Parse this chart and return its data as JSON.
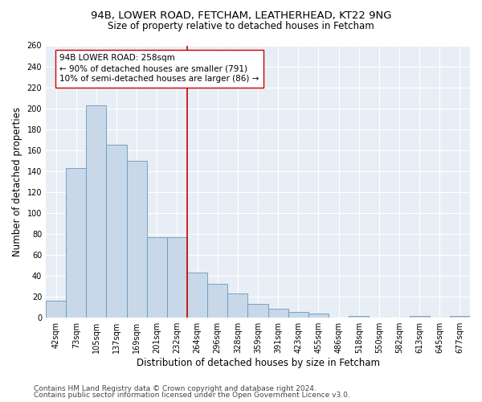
{
  "title_line1": "94B, LOWER ROAD, FETCHAM, LEATHERHEAD, KT22 9NG",
  "title_line2": "Size of property relative to detached houses in Fetcham",
  "xlabel": "Distribution of detached houses by size in Fetcham",
  "ylabel": "Number of detached properties",
  "bar_color": "#c8d8e8",
  "bar_edge_color": "#6699bb",
  "categories": [
    "42sqm",
    "73sqm",
    "105sqm",
    "137sqm",
    "169sqm",
    "201sqm",
    "232sqm",
    "264sqm",
    "296sqm",
    "328sqm",
    "359sqm",
    "391sqm",
    "423sqm",
    "455sqm",
    "486sqm",
    "518sqm",
    "550sqm",
    "582sqm",
    "613sqm",
    "645sqm",
    "677sqm"
  ],
  "values": [
    16,
    143,
    203,
    165,
    150,
    77,
    77,
    43,
    32,
    23,
    13,
    8,
    5,
    4,
    0,
    1,
    0,
    0,
    1,
    0,
    1
  ],
  "vline_color": "#cc0000",
  "vline_pos": 6.5,
  "annotation_text": "94B LOWER ROAD: 258sqm\n← 90% of detached houses are smaller (791)\n10% of semi-detached houses are larger (86) →",
  "ylim": [
    0,
    260
  ],
  "yticks": [
    0,
    20,
    40,
    60,
    80,
    100,
    120,
    140,
    160,
    180,
    200,
    220,
    240,
    260
  ],
  "footer_line1": "Contains HM Land Registry data © Crown copyright and database right 2024.",
  "footer_line2": "Contains public sector information licensed under the Open Government Licence v3.0.",
  "plot_background_color": "#e8eef5",
  "title_fontsize": 9.5,
  "subtitle_fontsize": 8.5,
  "axis_label_fontsize": 8.5,
  "tick_fontsize": 7,
  "annotation_fontsize": 7.5,
  "footer_fontsize": 6.5
}
